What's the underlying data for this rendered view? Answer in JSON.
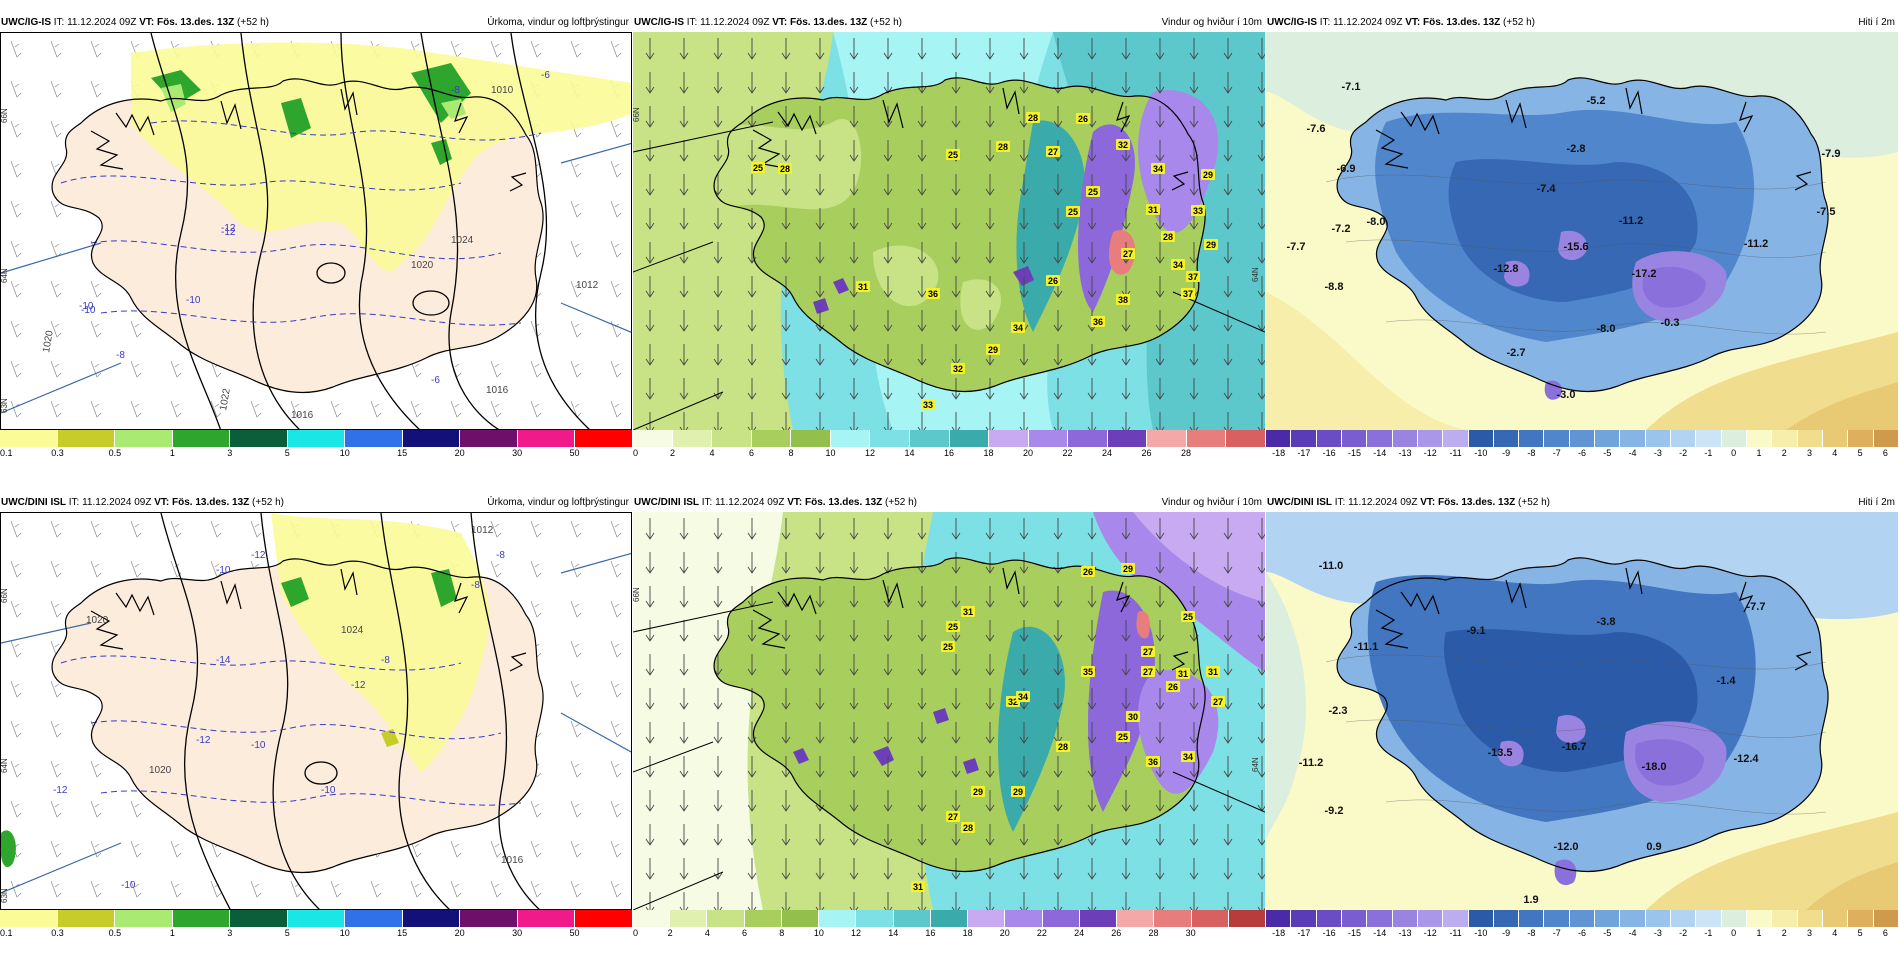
{
  "panels": [
    {
      "model": "UWC/IG-IS",
      "it": "IT: 11.12.2024 09Z",
      "vt": "VT: Fös. 13.des. 13Z",
      "lead": "(+52 h)",
      "title": "Úrkoma, vindur og loftþrýstingur",
      "lat_labels": [
        "66N",
        "64N",
        "63N"
      ],
      "temp_labels": [
        "-6",
        "-8",
        "-10",
        "-12",
        "-10",
        "-8",
        "-6",
        "-10",
        "-12",
        "-8"
      ],
      "pressure_labels": [
        "1020",
        "1016",
        "1012",
        "1020",
        "1022",
        "1024",
        "1016",
        "1010"
      ],
      "scale": [
        "0.1",
        "0.3",
        "0.5",
        "1",
        "3",
        "5",
        "10",
        "15",
        "20",
        "30",
        "50"
      ],
      "colors": [
        "#fbfb98",
        "#c8cc2a",
        "#a8ea72",
        "#2ea62e",
        "#0c5e3a",
        "#1ae6e6",
        "#3070e8",
        "#14107a",
        "#6e0f6a",
        "#f01a8a",
        "#ff0000"
      ]
    },
    {
      "model": "UWC/IG-IS",
      "it": "IT: 11.12.2024 09Z",
      "vt": "VT: Fös. 13.des. 13Z",
      "lead": "(+52 h)",
      "title": "Vindur og hviður í 10m",
      "lat_labels": [
        "66N",
        "64N"
      ],
      "gust_labels": [
        "28",
        "26",
        "25",
        "28",
        "27",
        "32",
        "34",
        "29",
        "25",
        "25",
        "31",
        "33",
        "28",
        "29",
        "34",
        "31",
        "36",
        "27",
        "37",
        "26",
        "38",
        "37",
        "34",
        "36",
        "29",
        "32",
        "33",
        "25",
        "28"
      ],
      "scale": [
        "0",
        "2",
        "4",
        "6",
        "8",
        "10",
        "12",
        "14",
        "16",
        "18",
        "20",
        "22",
        "24",
        "26",
        "28"
      ],
      "colors": [
        "#f6fbe4",
        "#e0f0ae",
        "#c7e386",
        "#a8cf5e",
        "#93c04c",
        "#a6f4f4",
        "#7de0e4",
        "#5cc8cc",
        "#3aabaa",
        "#c7aaf2",
        "#a888ea",
        "#8c68da",
        "#6c3fb8",
        "#f4a8a8",
        "#e87d7d",
        "#d86060"
      ]
    },
    {
      "model": "UWC/IG-IS",
      "it": "IT: 11.12.2024 09Z",
      "vt": "VT: Fös. 13.des. 13Z",
      "lead": "(+52 h)",
      "title": "Hiti í 2m",
      "temp_labels": [
        "-7.1",
        "-5.2",
        "-7.6",
        "-2.8",
        "-7.9",
        "-6.9",
        "-7.4",
        "-7.5",
        "-11.2",
        "-7.2",
        "-8.0",
        "-11.2",
        "-7.7",
        "-15.6",
        "-12.8",
        "-17.2",
        "-8.8",
        "-8.0",
        "-0.3",
        "-2.7",
        "-3.0"
      ],
      "scale": [
        "-18",
        "-17",
        "-16",
        "-15",
        "-14",
        "-13",
        "-12",
        "-11",
        "-10",
        "-9",
        "-8",
        "-7",
        "-6",
        "-5",
        "-4",
        "-3",
        "-2",
        "-1",
        "0",
        "1",
        "2",
        "3",
        "4",
        "5",
        "6"
      ],
      "colors": [
        "#4b2aa8",
        "#5a3bb8",
        "#6a4cc4",
        "#7a5dd0",
        "#8a70da",
        "#9a84e2",
        "#ab97ea",
        "#bcacf0",
        "#2a5aa8",
        "#3668b4",
        "#4276c0",
        "#5086cc",
        "#6094d4",
        "#72a4dc",
        "#86b4e4",
        "#9ac4ec",
        "#b2d4f2",
        "#cce4f6",
        "#dceedd",
        "#fafac8",
        "#f6eeaa",
        "#f0de8e",
        "#e8ca74",
        "#deb05e",
        "#d09a4c"
      ]
    },
    {
      "model": "UWC/DINI ISL",
      "it": "IT: 11.12.2024 09Z",
      "vt": "VT: Fös. 13.des. 13Z",
      "lead": "(+52 h)",
      "title": "Úrkoma, vindur og loftþrýstingur",
      "lat_labels": [
        "66N",
        "64N",
        "63N"
      ],
      "temp_labels": [
        "-12",
        "-8",
        "-10",
        "-8",
        "-14",
        "-12",
        "-10",
        "-12",
        "-10",
        "-12",
        "-8",
        "-10"
      ],
      "pressure_labels": [
        "1020",
        "1024",
        "1016",
        "1020",
        "1012"
      ],
      "scale": [
        "0.1",
        "0.3",
        "0.5",
        "1",
        "3",
        "5",
        "10",
        "15",
        "20",
        "30",
        "50"
      ],
      "colors": [
        "#fbfb98",
        "#c8cc2a",
        "#a8ea72",
        "#2ea62e",
        "#0c5e3a",
        "#1ae6e6",
        "#3070e8",
        "#14107a",
        "#6e0f6a",
        "#f01a8a",
        "#ff0000"
      ]
    },
    {
      "model": "UWC/DINI ISL",
      "it": "IT: 11.12.2024 09Z",
      "vt": "VT: Fös. 13.des. 13Z",
      "lead": "(+52 h)",
      "title": "Vindur og hviður í 10m",
      "lat_labels": [
        "66N",
        "64N"
      ],
      "gust_labels": [
        "26",
        "29",
        "25",
        "25",
        "31",
        "27",
        "25",
        "27",
        "31",
        "35",
        "32",
        "34",
        "31",
        "26",
        "27",
        "30",
        "36",
        "25",
        "34",
        "28",
        "29",
        "29",
        "27",
        "28",
        "31"
      ],
      "scale": [
        "0",
        "2",
        "4",
        "6",
        "8",
        "10",
        "12",
        "14",
        "16",
        "18",
        "20",
        "22",
        "24",
        "26",
        "28",
        "30"
      ],
      "colors": [
        "#f6fbe4",
        "#e0f0ae",
        "#c7e386",
        "#a8cf5e",
        "#93c04c",
        "#a6f4f4",
        "#7de0e4",
        "#5cc8cc",
        "#3aabaa",
        "#c7aaf2",
        "#a888ea",
        "#8c68da",
        "#6c3fb8",
        "#f4a8a8",
        "#e87d7d",
        "#d86060",
        "#b83c3c"
      ]
    },
    {
      "model": "UWC/DINI ISL",
      "it": "IT: 11.12.2024 09Z",
      "vt": "VT: Fös. 13.des. 13Z",
      "lead": "(+52 h)",
      "title": "Hiti í 2m",
      "temp_labels": [
        "-11.0",
        "-3.8",
        "-7.7",
        "-9.1",
        "-11.1",
        "-1.4",
        "-2.3",
        "-11.2",
        "-16.7",
        "-13.5",
        "-18.0",
        "-12.4",
        "-9.2",
        "-12.0",
        "0.9",
        "1.9"
      ],
      "scale": [
        "-18",
        "-17",
        "-16",
        "-15",
        "-14",
        "-13",
        "-12",
        "-11",
        "-10",
        "-9",
        "-8",
        "-7",
        "-6",
        "-5",
        "-4",
        "-3",
        "-2",
        "-1",
        "0",
        "1",
        "2",
        "3",
        "4",
        "5",
        "6"
      ],
      "colors": [
        "#4b2aa8",
        "#5a3bb8",
        "#6a4cc4",
        "#7a5dd0",
        "#8a70da",
        "#9a84e2",
        "#ab97ea",
        "#bcacf0",
        "#2a5aa8",
        "#3668b4",
        "#4276c0",
        "#5086cc",
        "#6094d4",
        "#72a4dc",
        "#86b4e4",
        "#9ac4ec",
        "#b2d4f2",
        "#cce4f6",
        "#dceedd",
        "#fafac8",
        "#f6eeaa",
        "#f0de8e",
        "#e8ca74",
        "#deb05e",
        "#d09a4c"
      ]
    }
  ]
}
